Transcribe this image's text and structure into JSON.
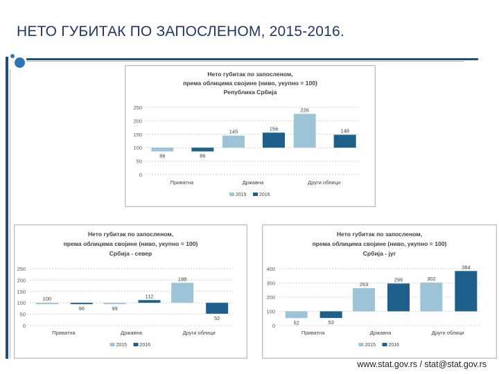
{
  "slide": {
    "title": "НЕТО ГУБИТАК ПО ЗАПОСЛЕНОМ, 2015-2016.",
    "footer": "www.stat.gov.rs / stat@stat.gov.rs"
  },
  "colors": {
    "series_2015": "#9dc3d6",
    "series_2016": "#1f5f8b",
    "accent": "#1f4e79",
    "bullet": "#2e75b6"
  },
  "chart_data": [
    {
      "id": "chart-srbija",
      "type": "bar",
      "title_lines": [
        "Нето губитак по запосленом,",
        "према облицима својине (ниво, укупно = 100)",
        "Република Србија"
      ],
      "categories": [
        "Приватна",
        "Државна",
        "Други облици"
      ],
      "series": [
        {
          "name": "2015",
          "values": [
            86,
            145,
            226
          ]
        },
        {
          "name": "2016",
          "values": [
            86,
            156,
            148
          ]
        }
      ],
      "ylim": [
        0,
        250
      ],
      "yticks": [
        "0",
        "50",
        "100",
        "150",
        "200",
        "250"
      ],
      "baseline": 100,
      "legend": "bottom"
    },
    {
      "id": "chart-sever",
      "type": "bar",
      "title_lines": [
        "Нето губитак по запосленом,",
        "према облицима својине (ниво, укупно = 100)",
        "Србија - север"
      ],
      "categories": [
        "Приватна",
        "Државна",
        "Други облици"
      ],
      "series": [
        {
          "name": "2015",
          "values": [
            100,
            99,
            188
          ]
        },
        {
          "name": "2016",
          "values": [
            96,
            112,
            52
          ]
        }
      ],
      "ylim": [
        0,
        250
      ],
      "yticks": [
        "0",
        "50",
        "100",
        "150",
        "200",
        "250"
      ],
      "baseline": 100,
      "legend": "bottom"
    },
    {
      "id": "chart-jug",
      "type": "bar",
      "title_lines": [
        "Нето губитак по запосленом,",
        "према облицима својине (ниво, укупно = 100)",
        "Србија - југ"
      ],
      "categories": [
        "Приватна",
        "Државна",
        "Други облици"
      ],
      "series": [
        {
          "name": "2015",
          "values": [
            52,
            263,
            302
          ]
        },
        {
          "name": "2016",
          "values": [
            53,
            296,
            384
          ]
        }
      ],
      "ylim": [
        0,
        400
      ],
      "yticks": [
        "0",
        "100",
        "200",
        "300",
        "400"
      ],
      "baseline": 100,
      "legend": "bottom"
    }
  ]
}
